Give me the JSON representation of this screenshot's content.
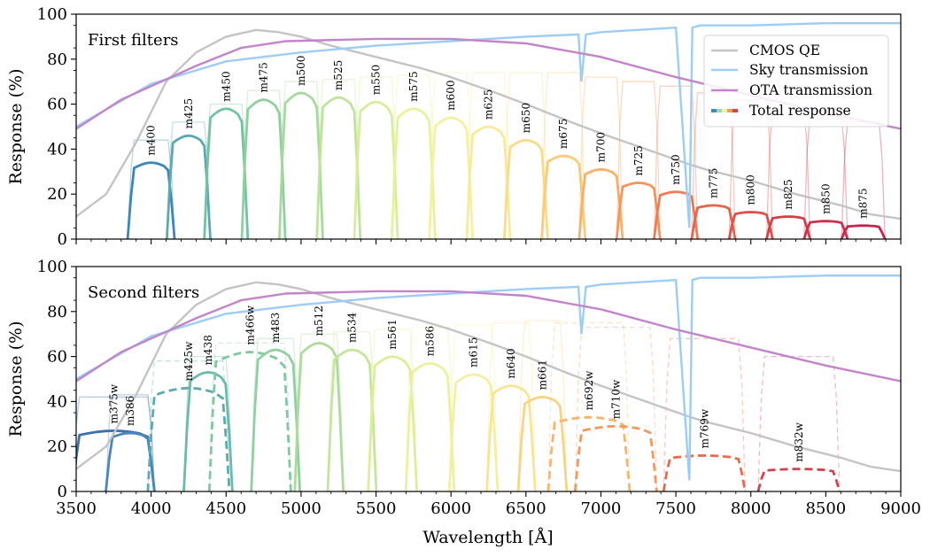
{
  "figure": {
    "xlabel": "Wavelength [Å]",
    "xlim": [
      3500,
      9000
    ],
    "xticks": [
      3500,
      4000,
      4500,
      5000,
      5500,
      6000,
      6500,
      7000,
      7500,
      8000,
      8500,
      9000
    ]
  },
  "legend": {
    "placement": "upper-right of top panel",
    "entries": [
      {
        "key": "cmos",
        "label": "CMOS QE",
        "color": "#c4c4c4"
      },
      {
        "key": "sky",
        "label": "Sky transmission",
        "color": "#9dcdf7"
      },
      {
        "key": "ota",
        "label": "OTA transmission",
        "color": "#c285c9"
      },
      {
        "key": "total",
        "label": "Total response",
        "colors": [
          "#3a8cbd",
          "#9fd8a4",
          "#f6f0a0",
          "#f69a58",
          "#d6404e"
        ]
      }
    ]
  },
  "chart_data": [
    {
      "type": "line",
      "panel": "top",
      "title": "First filters",
      "ylabel": "Response (%)",
      "ylim": [
        0,
        100
      ],
      "yticks": [
        0,
        20,
        40,
        60,
        80,
        100
      ],
      "grid": false,
      "reference_curves": {
        "cmos_qe": {
          "x": [
            3500,
            3700,
            3900,
            4100,
            4300,
            4500,
            4700,
            4850,
            5000,
            5200,
            5500,
            5800,
            6000,
            6300,
            6500,
            6800,
            7000,
            7300,
            7600,
            7700,
            8000,
            8300,
            8600,
            8800,
            9000
          ],
          "y": [
            10,
            20,
            43,
            70,
            83,
            90,
            93,
            92,
            90,
            86,
            81,
            76,
            72,
            65,
            60,
            52,
            47,
            40,
            33,
            31,
            26,
            20,
            15,
            11,
            9
          ]
        },
        "sky_transmission": {
          "x": [
            3500,
            4000,
            4500,
            5000,
            5500,
            6000,
            6500,
            6850,
            6870,
            6900,
            7000,
            7500,
            7590,
            7610,
            7660,
            8000,
            8500,
            9000
          ],
          "y": [
            50,
            69,
            79,
            83,
            86,
            88,
            90,
            91,
            70,
            91,
            92,
            94,
            5,
            94,
            95,
            95,
            96,
            96
          ]
        },
        "ota_transmission": {
          "x": [
            3500,
            3800,
            4000,
            4300,
            4600,
            4900,
            5500,
            6000,
            6500,
            7000,
            7500,
            8000,
            8500,
            9000
          ],
          "y": [
            49,
            62,
            68,
            77,
            85,
            88,
            89,
            89,
            87,
            81,
            72,
            64,
            56,
            49
          ]
        }
      },
      "filters": [
        {
          "name": "m400",
          "center": 4000,
          "width": 270,
          "peak": 34,
          "band": 44,
          "color": "#3a87b8"
        },
        {
          "name": "m425",
          "center": 4250,
          "width": 250,
          "peak": 46,
          "band": 52,
          "color": "#5aaab0"
        },
        {
          "name": "m450",
          "center": 4500,
          "width": 250,
          "peak": 58,
          "band": 60,
          "color": "#72c3a3"
        },
        {
          "name": "m475",
          "center": 4750,
          "width": 250,
          "peak": 62,
          "band": 66,
          "color": "#8fd09f"
        },
        {
          "name": "m500",
          "center": 5000,
          "width": 250,
          "peak": 65,
          "band": 70,
          "color": "#a8d99c"
        },
        {
          "name": "m525",
          "center": 5250,
          "width": 250,
          "peak": 63,
          "band": 71,
          "color": "#c0e39a"
        },
        {
          "name": "m550",
          "center": 5500,
          "width": 250,
          "peak": 61,
          "band": 72,
          "color": "#d8ed98"
        },
        {
          "name": "m575",
          "center": 5750,
          "width": 250,
          "peak": 58,
          "band": 73,
          "color": "#e8f29b"
        },
        {
          "name": "m600",
          "center": 6000,
          "width": 250,
          "peak": 54,
          "band": 74,
          "color": "#f3f2a0"
        },
        {
          "name": "m625",
          "center": 6250,
          "width": 250,
          "peak": 50,
          "band": 74,
          "color": "#f7eb9a"
        },
        {
          "name": "m650",
          "center": 6500,
          "width": 250,
          "peak": 44,
          "band": 74,
          "color": "#f9dc8a"
        },
        {
          "name": "m675",
          "center": 6750,
          "width": 250,
          "peak": 37,
          "band": 74,
          "color": "#facb78"
        },
        {
          "name": "m700",
          "center": 7000,
          "width": 250,
          "peak": 31,
          "band": 72,
          "color": "#f9b068"
        },
        {
          "name": "m725",
          "center": 7250,
          "width": 250,
          "peak": 25,
          "band": 70,
          "color": "#f6945a"
        },
        {
          "name": "m750",
          "center": 7500,
          "width": 250,
          "peak": 21,
          "band": 68,
          "color": "#f17b52"
        },
        {
          "name": "m775",
          "center": 7750,
          "width": 250,
          "peak": 15,
          "band": 65,
          "color": "#e8634c"
        },
        {
          "name": "m800",
          "center": 8000,
          "width": 250,
          "peak": 12,
          "band": 62,
          "color": "#df5049"
        },
        {
          "name": "m825",
          "center": 8250,
          "width": 250,
          "peak": 10,
          "band": 58,
          "color": "#d53f4a"
        },
        {
          "name": "m850",
          "center": 8500,
          "width": 250,
          "peak": 8,
          "band": 55,
          "color": "#cb324c"
        },
        {
          "name": "m875",
          "center": 8750,
          "width": 250,
          "peak": 6,
          "band": 52,
          "color": "#bf2750"
        }
      ]
    },
    {
      "type": "line",
      "panel": "bottom",
      "title": "Second filters",
      "ylabel": "Response (%)",
      "ylim": [
        0,
        100
      ],
      "yticks": [
        0,
        20,
        40,
        60,
        80,
        100
      ],
      "grid": false,
      "filters": [
        {
          "name": "m375w",
          "center": 3750,
          "width": 500,
          "peak": 27,
          "band": 42,
          "color": "#3a6fb0",
          "style": "solid"
        },
        {
          "name": "m386",
          "center": 3860,
          "width": 280,
          "peak": 26,
          "band": 43,
          "color": "#4a86bc",
          "style": "solid"
        },
        {
          "name": "m425w",
          "center": 4250,
          "width": 500,
          "peak": 46,
          "band": 58,
          "color": "#5aaab0",
          "style": "dashed"
        },
        {
          "name": "m438",
          "center": 4380,
          "width": 280,
          "peak": 53,
          "band": 60,
          "color": "#6abba8",
          "style": "solid"
        },
        {
          "name": "m466w",
          "center": 4660,
          "width": 500,
          "peak": 62,
          "band": 66,
          "color": "#7fc8a2",
          "style": "dashed"
        },
        {
          "name": "m483",
          "center": 4830,
          "width": 280,
          "peak": 63,
          "band": 68,
          "color": "#90d09f",
          "style": "solid"
        },
        {
          "name": "m512",
          "center": 5120,
          "width": 280,
          "peak": 66,
          "band": 70,
          "color": "#aedb9c",
          "style": "solid"
        },
        {
          "name": "m534",
          "center": 5340,
          "width": 280,
          "peak": 63,
          "band": 71,
          "color": "#c5e59a",
          "style": "solid"
        },
        {
          "name": "m561",
          "center": 5610,
          "width": 280,
          "peak": 60,
          "band": 72,
          "color": "#dcee98",
          "style": "solid"
        },
        {
          "name": "m586",
          "center": 5860,
          "width": 280,
          "peak": 57,
          "band": 73,
          "color": "#ebf29c",
          "style": "solid"
        },
        {
          "name": "m615",
          "center": 6150,
          "width": 280,
          "peak": 52,
          "band": 74,
          "color": "#f4f0a0",
          "style": "solid"
        },
        {
          "name": "m640",
          "center": 6400,
          "width": 280,
          "peak": 47,
          "band": 75,
          "color": "#f8e592",
          "style": "solid"
        },
        {
          "name": "m661",
          "center": 6610,
          "width": 280,
          "peak": 42,
          "band": 76,
          "color": "#f9d480",
          "style": "solid"
        },
        {
          "name": "m692w",
          "center": 6920,
          "width": 500,
          "peak": 33,
          "band": 75,
          "color": "#f8b46a",
          "style": "dashed"
        },
        {
          "name": "m710w",
          "center": 7100,
          "width": 500,
          "peak": 29,
          "band": 73,
          "color": "#f4985c",
          "style": "dashed"
        },
        {
          "name": "m769w",
          "center": 7690,
          "width": 500,
          "peak": 16,
          "band": 68,
          "color": "#e86a4e",
          "style": "dashed"
        },
        {
          "name": "m832w",
          "center": 8320,
          "width": 500,
          "peak": 10,
          "band": 60,
          "color": "#d24350",
          "style": "dashed"
        }
      ]
    }
  ]
}
